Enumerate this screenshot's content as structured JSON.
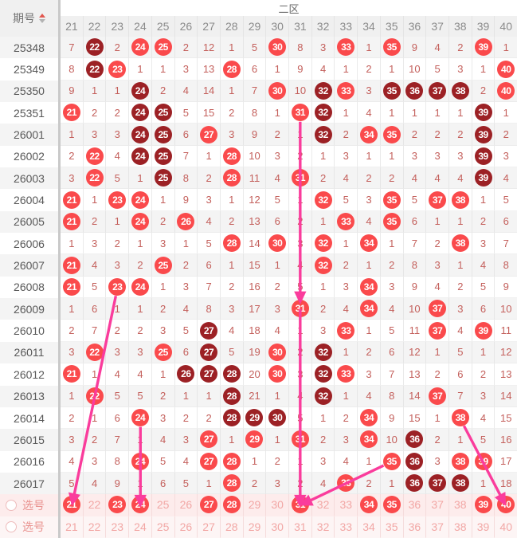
{
  "title": {
    "zone": "二区"
  },
  "header": {
    "issue_label": "期号",
    "columns": [
      "21",
      "22",
      "23",
      "24",
      "25",
      "26",
      "27",
      "28",
      "29",
      "30",
      "31",
      "32",
      "33",
      "34",
      "35",
      "36",
      "37",
      "38",
      "39",
      "40"
    ]
  },
  "legend_note": "R = drawn number shown as bright red ball, D = drawn number shown as dark maroon ball, plain number = miss count",
  "rows": [
    {
      "issue": "25348",
      "cells": "7,22D,2,24R,25R,2,12,1,5,30R,8,3,33R,1,35R,9,4,2,39R,1"
    },
    {
      "issue": "25349",
      "cells": "8,22D,23R,1,1,3,13,28R,6,1,9,4,1,2,1,10,5,3,1,40R"
    },
    {
      "issue": "25350",
      "cells": "9,1,1,24D,2,4,14,1,7,30R,10,32D,33R,3,35D,36D,37D,38D,2,40R"
    },
    {
      "issue": "25351",
      "cells": "21R,2,2,24D,25D,5,15,2,8,1,31R,32D,1,4,1,1,1,1,39D,1"
    },
    {
      "issue": "26001",
      "cells": "1,3,3,24D,25D,6,27R,3,9,2,1,32D,2,34R,35R,2,2,2,39D,2"
    },
    {
      "issue": "26002",
      "cells": "2,22R,4,24D,25D,7,1,28R,10,3,2,1,3,1,1,3,3,3,39D,3"
    },
    {
      "issue": "26003",
      "cells": "3,22R,5,1,25D,8,2,28R,11,4,31R,2,4,2,2,4,4,4,39D,4"
    },
    {
      "issue": "26004",
      "cells": "21R,1,23R,24R,1,9,3,1,12,5,1,32R,5,3,35R,5,37R,38R,1,5"
    },
    {
      "issue": "26005",
      "cells": "21R,2,1,24R,2,26R,4,2,13,6,2,1,33R,4,35R,6,1,1,2,6"
    },
    {
      "issue": "26006",
      "cells": "1,3,2,1,3,1,5,28R,14,30R,3,32R,1,34R,1,7,2,38R,3,7"
    },
    {
      "issue": "26007",
      "cells": "21R,4,3,2,25R,2,6,1,15,1,4,32R,2,1,2,8,3,1,4,8"
    },
    {
      "issue": "26008",
      "cells": "21R,5,23R,24R,1,3,7,2,16,2,5,1,3,34R,3,9,4,2,5,9"
    },
    {
      "issue": "26009",
      "cells": "1,6,1,1,2,4,8,3,17,3,31R,2,4,34R,4,10,37R,3,6,10"
    },
    {
      "issue": "26010",
      "cells": "2,7,2,2,3,5,27D,4,18,4,1,3,33R,1,5,11,37R,4,39R,11"
    },
    {
      "issue": "26011",
      "cells": "3,22R,3,3,25R,6,27D,5,19,30R,2,32D,1,2,6,12,1,5,1,12"
    },
    {
      "issue": "26012",
      "cells": "21R,1,4,4,1,26D,27D,28D,20,30R,3,32D,33R,3,7,13,2,6,2,13"
    },
    {
      "issue": "26013",
      "cells": "1,22R,5,5,2,1,1,28D,21,1,4,32D,1,4,8,14,37R,7,3,14"
    },
    {
      "issue": "26014",
      "cells": "2,1,6,24R,3,2,2,28D,29D,30D,5,1,2,34R,9,15,1,38R,4,15"
    },
    {
      "issue": "26015",
      "cells": "3,2,7,1,4,3,27R,1,29R,1,31R,2,3,34R,10,36D,2,1,5,16"
    },
    {
      "issue": "26016",
      "cells": "4,3,8,24R,5,4,27R,28R,1,2,1,3,4,1,35R,36D,3,38R,39R,17"
    },
    {
      "issue": "26017",
      "cells": "5,4,9,1,6,5,1,28R,2,3,2,4,33R,2,1,36D,37D,38D,1,18"
    }
  ],
  "selection_rows": [
    {
      "label": "选号",
      "cells": "21R,22,23R,24R,25,26,27R,28R,29,30,31R,32,33,34R,35R,36,37,38,39R,40R"
    },
    {
      "label": "选号",
      "cells": "21,22,23,24,25,26,27,28,29,30,31,32,33,34,35,36,37,38,39,40"
    }
  ],
  "arrows": [
    {
      "from": {
        "col": 31,
        "row": 3
      },
      "to": {
        "col": 31,
        "row": 12
      },
      "trim_start": 11,
      "trim_end": 12
    },
    {
      "from": {
        "col": 31,
        "row": 12
      },
      "to": {
        "col": 31,
        "row": 21
      },
      "trim_start": 0,
      "trim_end": 3
    },
    {
      "from": {
        "col": 23,
        "row": 11
      },
      "to": {
        "col": 21,
        "row": 21
      },
      "trim_start": 11,
      "trim_end": 5
    },
    {
      "from": {
        "col": 24,
        "row": 17
      },
      "to": {
        "col": 24,
        "row": 21
      },
      "trim_start": 11,
      "trim_end": 3
    },
    {
      "from": {
        "col": 38,
        "row": 17
      },
      "to": {
        "col": 40,
        "row": 21
      },
      "trim_start": 11,
      "trim_end": 5
    },
    {
      "from": {
        "col": 35,
        "row": 19
      },
      "to": {
        "col": 31,
        "row": 21
      },
      "trim_start": 11,
      "trim_end": 5
    }
  ],
  "colors": {
    "ball_red": "#fa4a4c",
    "ball_maroon": "#9c2125",
    "miss_text": "#c4605c",
    "selection_text": "#f2a7a5",
    "selection_row_bg": "#fdecec",
    "arrow_pink": "#fa3c9c",
    "header_bg": "#f0f0f0",
    "zebra_bg": "#f4f4f4"
  }
}
